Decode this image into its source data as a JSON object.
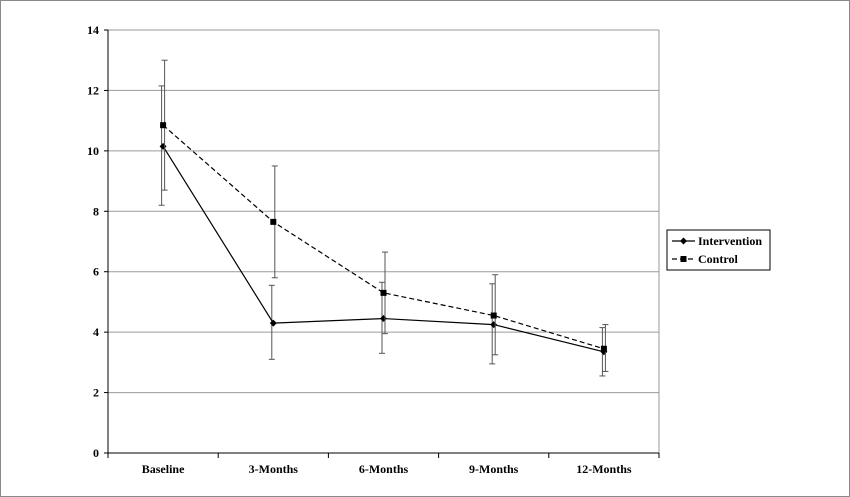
{
  "chart_data": {
    "type": "line",
    "title": "",
    "xlabel": "",
    "ylabel": "",
    "categories": [
      "Baseline",
      "3-Months",
      "6-Months",
      "9-Months",
      "12-Months"
    ],
    "ylim": [
      0,
      14
    ],
    "yticks": [
      0,
      2,
      4,
      6,
      8,
      10,
      12,
      14
    ],
    "grid": true,
    "legend_position": "right",
    "series": [
      {
        "name": "Intervention",
        "values": [
          10.15,
          4.3,
          4.45,
          4.25,
          3.35
        ],
        "error_low": [
          8.2,
          3.1,
          3.3,
          2.95,
          2.55
        ],
        "error_high": [
          12.15,
          5.55,
          5.65,
          5.6,
          4.15
        ],
        "line_style": "solid",
        "marker": "diamond",
        "color": "#000000"
      },
      {
        "name": "Control",
        "values": [
          10.85,
          7.65,
          5.3,
          4.55,
          3.45
        ],
        "error_low": [
          8.7,
          5.8,
          3.95,
          3.25,
          2.7
        ],
        "error_high": [
          13.0,
          9.5,
          6.65,
          5.9,
          4.25
        ],
        "line_style": "dashed",
        "marker": "square",
        "color": "#000000"
      }
    ]
  }
}
